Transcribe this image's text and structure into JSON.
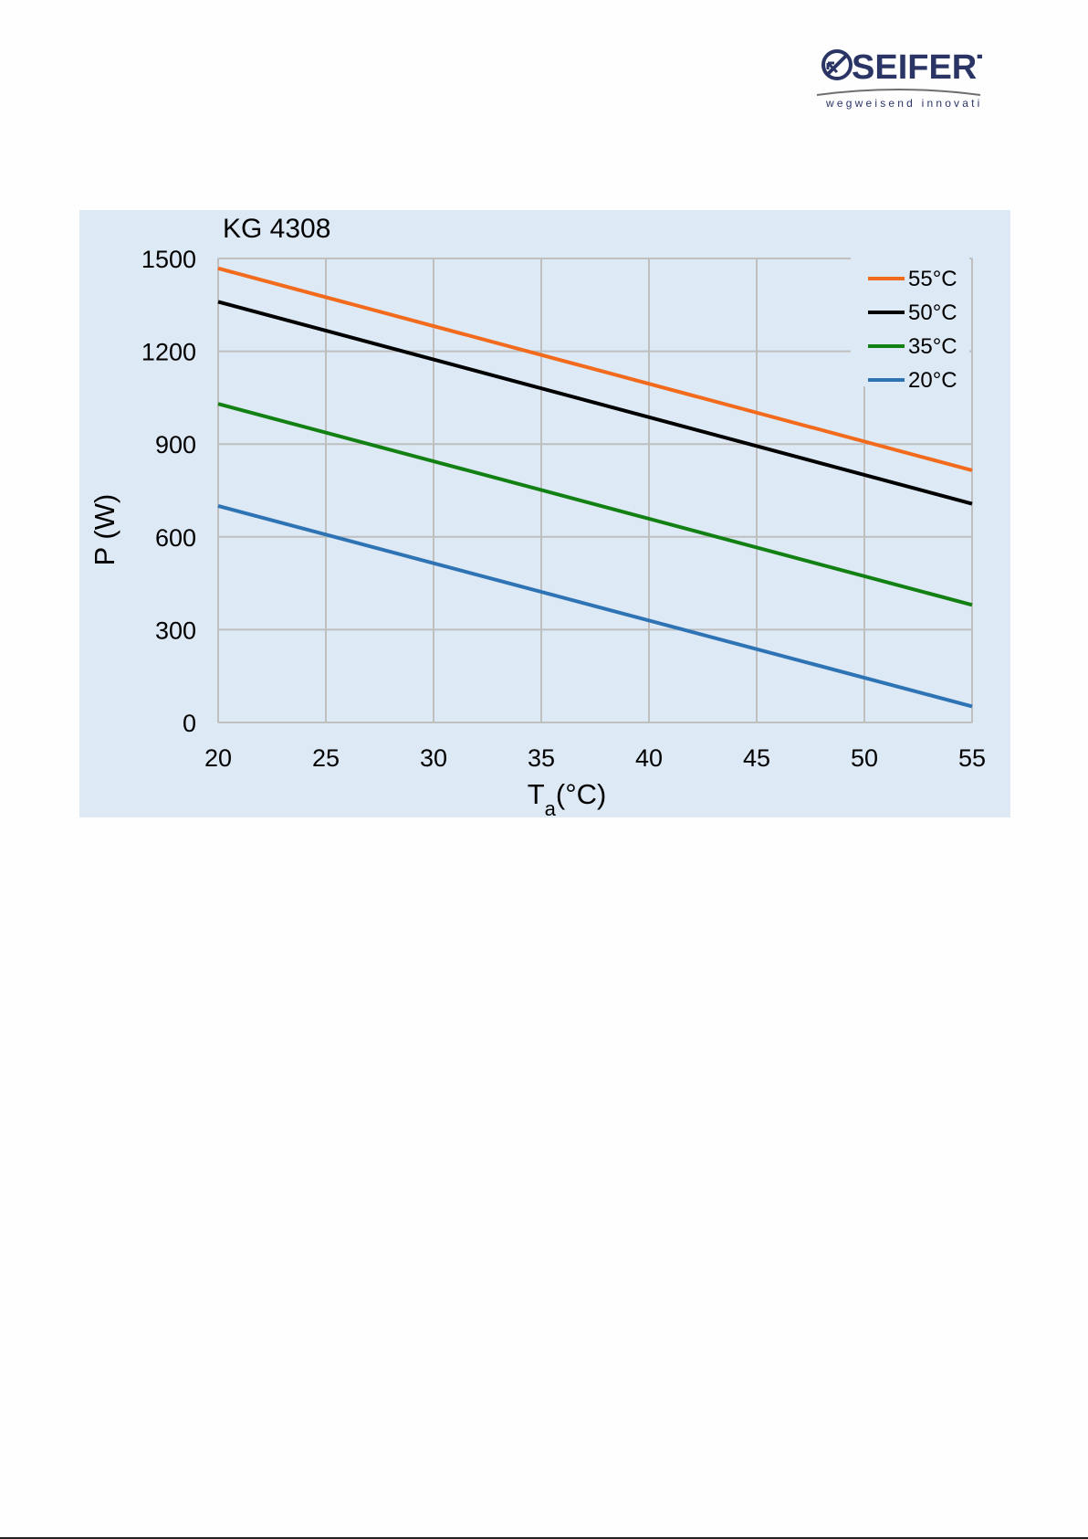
{
  "logo": {
    "name": "SEIFERT",
    "tagline": "wegweisend innovativ",
    "color": "#2a3566"
  },
  "chart_data": {
    "type": "line",
    "title": "KG 4308",
    "xlabel_main": "T",
    "xlabel_sub": "a",
    "xlabel_unit": "(°C)",
    "ylabel": "P (W)",
    "xlim": [
      20,
      55
    ],
    "ylim": [
      0,
      1500
    ],
    "xticks": [
      20,
      25,
      30,
      35,
      40,
      45,
      50,
      55
    ],
    "yticks": [
      0,
      300,
      600,
      900,
      1200,
      1500
    ],
    "grid": true,
    "legend_position": "top-right",
    "series": [
      {
        "name": "55°C",
        "color": "#f26b1d",
        "x": [
          20,
          55
        ],
        "y": [
          1468,
          815
        ]
      },
      {
        "name": "50°C",
        "color": "#000000",
        "x": [
          20,
          55
        ],
        "y": [
          1360,
          707
        ]
      },
      {
        "name": "35°C",
        "color": "#128012",
        "x": [
          20,
          55
        ],
        "y": [
          1030,
          380
        ]
      },
      {
        "name": "20°C",
        "color": "#2e74b5",
        "x": [
          20,
          55
        ],
        "y": [
          700,
          52
        ]
      }
    ],
    "background": "#dde9f5"
  }
}
